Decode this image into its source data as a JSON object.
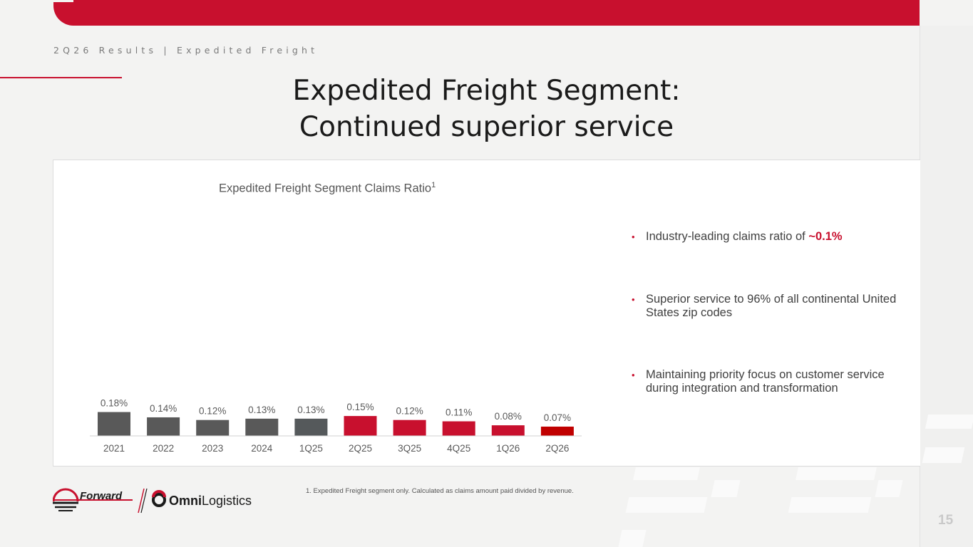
{
  "header": {
    "breadcrumb": "2Q26 Results | Expedited Freight",
    "title_line1": "Expedited Freight Segment:",
    "title_line2": "Continued superior service"
  },
  "chart_data": {
    "type": "bar",
    "title": "Expedited Freight Segment Claims Ratio",
    "title_superscript": "1",
    "categories": [
      "2021",
      "2022",
      "2023",
      "2024",
      "1Q25",
      "2Q25",
      "3Q25",
      "4Q25",
      "1Q26",
      "2Q26"
    ],
    "values": [
      0.18,
      0.14,
      0.12,
      0.13,
      0.13,
      0.15,
      0.12,
      0.11,
      0.08,
      0.07
    ],
    "data_labels": [
      "0.18%",
      "0.14%",
      "0.12%",
      "0.13%",
      "0.13%",
      "0.15%",
      "0.12%",
      "0.11%",
      "0.08%",
      "0.07%"
    ],
    "bar_colors": [
      "#595959",
      "#595959",
      "#595959",
      "#595959",
      "#55595b",
      "#c8102e",
      "#c8102e",
      "#c8102e",
      "#c8102e",
      "#c00000"
    ],
    "xlabel": "",
    "ylabel": "",
    "grid": false,
    "legend": "none"
  },
  "bullets": [
    {
      "text": "Industry-leading claims ratio of ",
      "highlight": "~0.1%"
    },
    {
      "text": "Superior service to 96% of all continental United States zip codes"
    },
    {
      "text": "Maintaining priority focus on customer service during integration and transformation"
    }
  ],
  "footnote": "1.  Expedited Freight segment only. Calculated as claims amount paid divided by revenue.",
  "logos": {
    "forward": "Forward",
    "omni_bold": "Omni",
    "omni_light": "Logistics"
  },
  "page_number": "15",
  "colors": {
    "accent": "#c8102e",
    "gray_bar": "#595959",
    "background": "#f3f3f2"
  }
}
